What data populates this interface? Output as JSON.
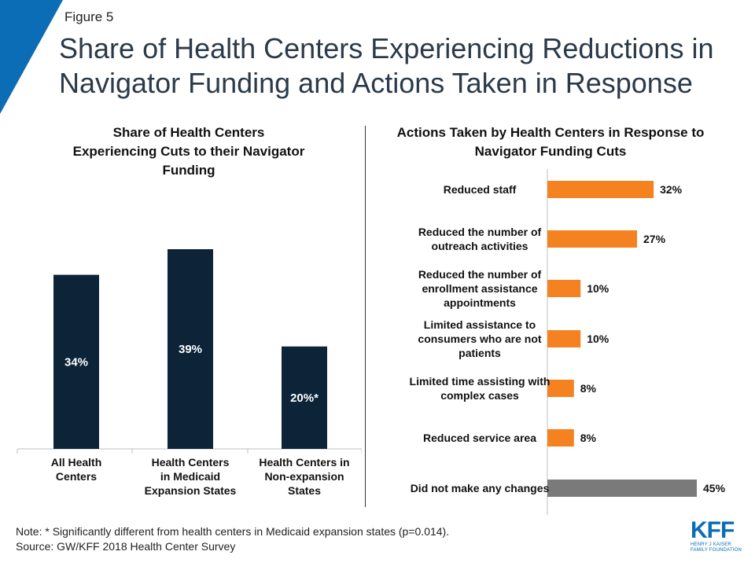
{
  "header": {
    "figure_label": "Figure 5",
    "title": "Share of Health Centers Experiencing Reductions in Navigator Funding and Actions Taken in Response"
  },
  "left_panel": {
    "title": "Share of Health Centers Experiencing Cuts to their Navigator Funding"
  },
  "right_panel": {
    "title": "Actions Taken by Health Centers in Response to Navigator Funding Cuts"
  },
  "colors": {
    "accent_blue": "#0a6db5",
    "dark_bar": "#0c2338",
    "orange_bar": "#f58220",
    "gray_bar": "#7a7a7a"
  },
  "chart_data": [
    {
      "type": "bar",
      "title": "Share of Health Centers Experiencing Cuts to their Navigator Funding",
      "categories": [
        [
          "All Health",
          "Centers"
        ],
        [
          "Health Centers",
          "in Medicaid",
          "Expansion States"
        ],
        [
          "Health Centers in",
          "Non-expansion",
          "States"
        ]
      ],
      "values": [
        34,
        39,
        20
      ],
      "data_labels": [
        "34%",
        "39%",
        "20%*"
      ],
      "ylim": [
        0,
        45
      ],
      "color": "#0c2338"
    },
    {
      "type": "bar",
      "orientation": "horizontal",
      "title": "Actions Taken by Health Centers in Response to Navigator Funding Cuts",
      "categories": [
        [
          "Reduced staff"
        ],
        [
          "Reduced the number of",
          "outreach activities"
        ],
        [
          "Reduced the number of",
          "enrollment assistance",
          "appointments"
        ],
        [
          "Limited assistance to",
          "consumers who are not",
          "patients"
        ],
        [
          "Limited time assisting with",
          "complex cases"
        ],
        [
          "Reduced service area"
        ],
        [
          "Did not make any changes"
        ]
      ],
      "values": [
        32,
        27,
        10,
        10,
        8,
        8,
        45
      ],
      "data_labels": [
        "32%",
        "27%",
        "10%",
        "10%",
        "8%",
        "8%",
        "45%"
      ],
      "colors": [
        "#f58220",
        "#f58220",
        "#f58220",
        "#f58220",
        "#f58220",
        "#f58220",
        "#7a7a7a"
      ],
      "xlim": [
        0,
        45
      ]
    }
  ],
  "footer": {
    "note": "Note: * Significantly different from health centers in Medicaid expansion states (p=0.014).",
    "source": "Source: GW/KFF 2018 Health Center Survey"
  },
  "logo": {
    "main": "KFF",
    "sub_line1": "HENRY J KAISER",
    "sub_line2": "FAMILY FOUNDATION"
  }
}
